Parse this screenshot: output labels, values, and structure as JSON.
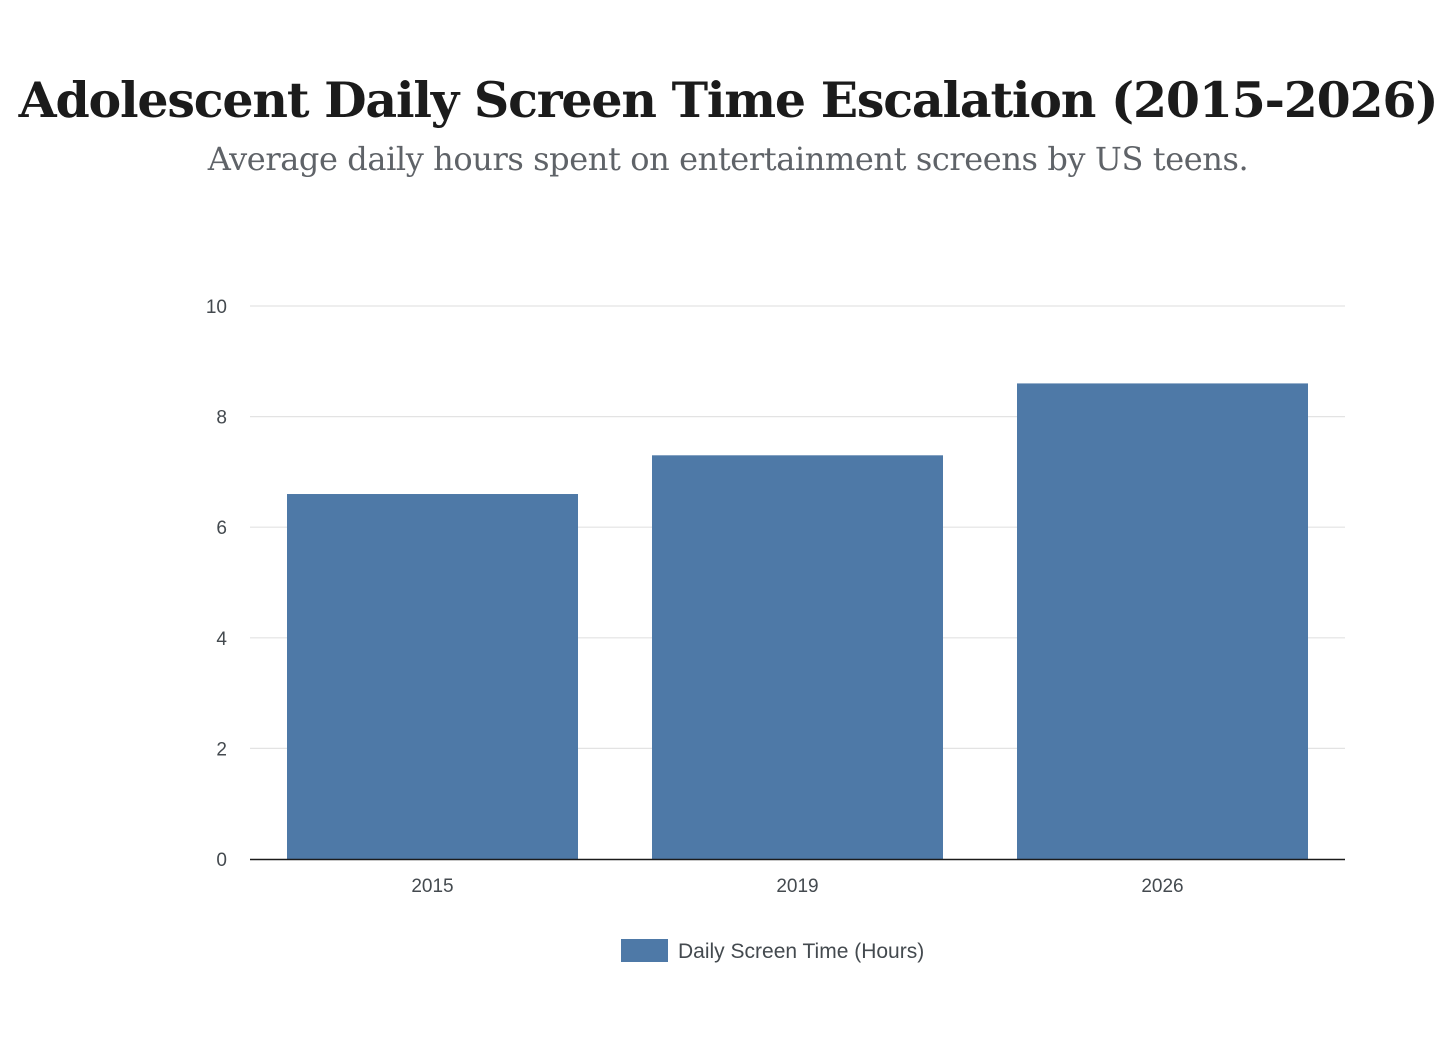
{
  "title": "Adolescent Daily Screen Time Escalation (2015-2026)",
  "subtitle": "Average daily hours spent on entertainment screens by US teens.",
  "chart_data": {
    "type": "bar",
    "title": "Adolescent Daily Screen Time Escalation (2015-2026)",
    "subtitle": "Average daily hours spent on entertainment screens by US teens.",
    "categories": [
      "2015",
      "2019",
      "2026"
    ],
    "series": [
      {
        "name": "Daily Screen Time (Hours)",
        "values": [
          6.6,
          7.3,
          8.6
        ],
        "color": "#4e79a7"
      }
    ],
    "yticks": [
      0,
      2,
      4,
      6,
      8,
      10
    ],
    "ylim": [
      0,
      10
    ],
    "xlabel": "",
    "ylabel": "",
    "grid": true,
    "legend_position": "bottom-center"
  },
  "colors": {
    "bar": "#4e79a7",
    "grid": "#e3e3e3",
    "axis": "#1b1b1b",
    "text": "#444a4f"
  }
}
